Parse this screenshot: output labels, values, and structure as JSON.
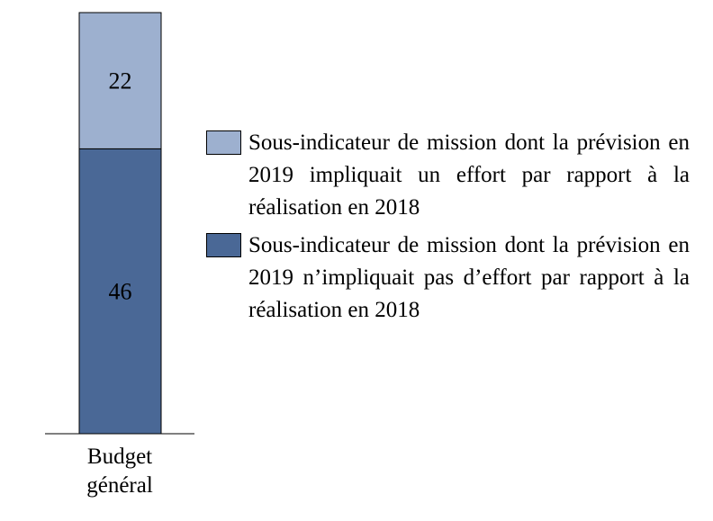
{
  "chart_data": {
    "type": "bar",
    "stacked": true,
    "categories": [
      "Budget général"
    ],
    "series": [
      {
        "name": "Sous-indicateur de mission dont la prévision en 2019 n’impliquait pas d’effort par rapport à la réalisation en 2018",
        "values": [
          46
        ],
        "color": "#4a6896"
      },
      {
        "name": "Sous-indicateur de mission dont la prévision en 2019 impliquait un effort par rapport à la réalisation en 2018",
        "values": [
          22
        ],
        "color": "#9db0cf"
      }
    ],
    "data_labels": [
      "46",
      "22"
    ],
    "legend_position": "right",
    "grid": false
  }
}
